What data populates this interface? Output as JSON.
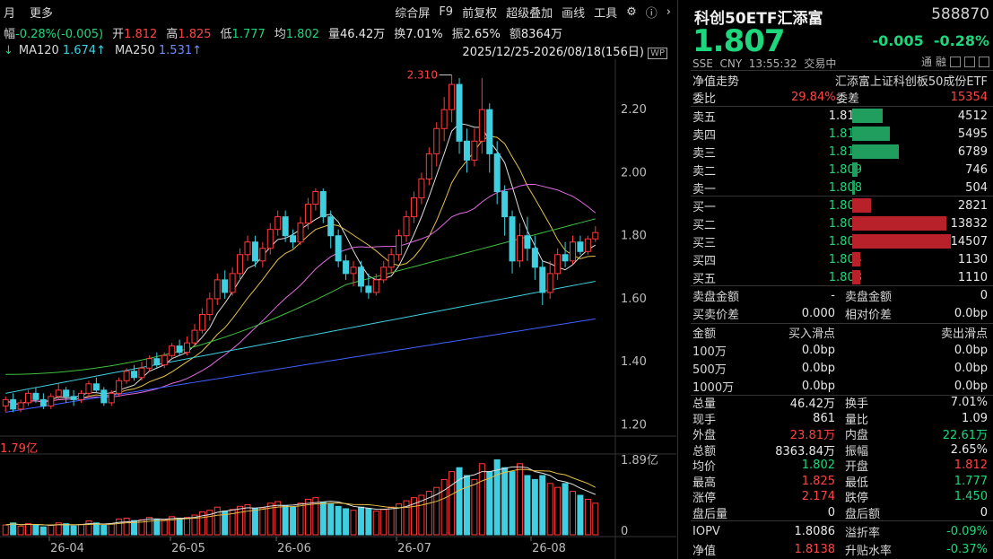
{
  "topbar": {
    "left": [
      "月",
      "更多"
    ],
    "right": [
      "综合屏",
      "F9",
      "前复权",
      "超级叠加",
      "画线",
      "工具"
    ],
    "icons": [
      "gear-icon",
      "help-icon",
      "chevron-right-icon"
    ]
  },
  "infobar": {
    "items": [
      {
        "label": "幅",
        "value": "-0.28%(-0.005)",
        "cls": "dn"
      },
      {
        "label": "开",
        "value": "1.812",
        "cls": "up"
      },
      {
        "label": "高",
        "value": "1.825",
        "cls": "up"
      },
      {
        "label": "低",
        "value": "1.777",
        "cls": "dn"
      },
      {
        "label": "均",
        "value": "1.802",
        "cls": "dn"
      },
      {
        "label": "量",
        "value": "46.42万",
        "cls": "wt"
      },
      {
        "label": "换",
        "value": "7.01%",
        "cls": "wt"
      },
      {
        "label": "振",
        "value": "2.65%",
        "cls": "wt"
      },
      {
        "label": "额",
        "value": "8364万",
        "cls": "wt"
      }
    ]
  },
  "mabar": {
    "ma120_label": "MA120",
    "ma120": "1.674↑",
    "ma250_label": "MA250",
    "ma250": "1.531↑",
    "range": "2025/12/25-2026/08/18(156日)"
  },
  "chart": {
    "high_label": "2.310",
    "price_ticks": [
      "2.20",
      "2.00",
      "1.80",
      "1.60",
      "1.40",
      "1.20"
    ],
    "vol_ticks": [
      "1.89亿",
      "0"
    ],
    "vol_label": "1.79亿",
    "date_ticks": [
      "26-04",
      "26-05",
      "26-06",
      "26-07",
      "26-08"
    ],
    "colors": {
      "up": "#ff3b3b",
      "down": "#3fcfe0",
      "ma5": "#e0e0e0",
      "ma10": "#e6c04a",
      "ma20": "#e06ae0",
      "ma60": "#3fbf3f",
      "ma120": "#3fcfe0",
      "ma250": "#4060ff"
    }
  },
  "quote": {
    "name": "科创50ETF汇添富",
    "code": "588870",
    "price": "1.807",
    "change": "-0.005",
    "change_pct": "-0.28%",
    "market": "SSE",
    "currency": "CNY",
    "time": "13:55:32",
    "status": "交易中",
    "tags": [
      "通",
      "融"
    ],
    "nav_trend": "净值走势",
    "full_name": "汇添富上证科创板50成份ETF"
  },
  "weibi": {
    "label": "委比",
    "value": "29.84%",
    "diff_label": "委差",
    "diff": "15354"
  },
  "asks": [
    {
      "label": "卖五",
      "price": "1.812",
      "vol": "4512",
      "bar": 0.31
    },
    {
      "label": "卖四",
      "price": "1.811",
      "vol": "5495",
      "bar": 0.38
    },
    {
      "label": "卖三",
      "price": "1.810",
      "vol": "6789",
      "bar": 0.47
    },
    {
      "label": "卖二",
      "price": "1.809",
      "vol": "746",
      "bar": 0.05
    },
    {
      "label": "卖一",
      "price": "1.808",
      "vol": "504",
      "bar": 0.03
    }
  ],
  "bids": [
    {
      "label": "买一",
      "price": "1.807",
      "vol": "2821",
      "bar": 0.19
    },
    {
      "label": "买二",
      "price": "1.806",
      "vol": "13832",
      "bar": 0.95
    },
    {
      "label": "买三",
      "price": "1.805",
      "vol": "14507",
      "bar": 1.0
    },
    {
      "label": "买四",
      "price": "1.804",
      "vol": "1130",
      "bar": 0.08
    },
    {
      "label": "买五",
      "price": "1.803",
      "vol": "1110",
      "bar": 0.08
    }
  ],
  "amounts": [
    {
      "l": "卖盘金额",
      "v": "-",
      "l2": "卖盘金额",
      "v2": "0"
    },
    {
      "l": "买卖价差",
      "v": "0.000",
      "l2": "相对价差",
      "v2": "0.0bp"
    }
  ],
  "slip": {
    "header": [
      "金额",
      "买入滑点",
      "卖出滑点"
    ],
    "rows": [
      [
        "100万",
        "0.0bp",
        "0.0bp"
      ],
      [
        "500万",
        "0.0bp",
        "0.0bp"
      ],
      [
        "1000万",
        "0.0bp",
        "0.0bp"
      ]
    ]
  },
  "stats": [
    {
      "l": "总量",
      "v": "46.42万",
      "vc": "wt",
      "l2": "换手",
      "v2": "7.01%",
      "v2c": "wt"
    },
    {
      "l": "现手",
      "v": "861",
      "vc": "wt",
      "l2": "量比",
      "v2": "1.09",
      "v2c": "wt"
    },
    {
      "l": "外盘",
      "v": "23.81万",
      "vc": "up",
      "l2": "内盘",
      "v2": "22.61万",
      "v2c": "dn"
    },
    {
      "l": "总额",
      "v": "8363.84万",
      "vc": "wt",
      "l2": "振幅",
      "v2": "2.65%",
      "v2c": "wt"
    },
    {
      "l": "均价",
      "v": "1.802",
      "vc": "dn",
      "l2": "开盘",
      "v2": "1.812",
      "v2c": "up"
    },
    {
      "l": "最高",
      "v": "1.825",
      "vc": "up",
      "l2": "最低",
      "v2": "1.777",
      "v2c": "dn"
    },
    {
      "l": "涨停",
      "v": "2.174",
      "vc": "up",
      "l2": "跌停",
      "v2": "1.450",
      "v2c": "dn"
    },
    {
      "l": "盘后量",
      "v": "0",
      "vc": "wt",
      "l2": "盘后额",
      "v2": "0",
      "v2c": "wt"
    }
  ],
  "iopv": [
    {
      "l": "IOPV",
      "v": "1.8086",
      "vc": "wt",
      "l2": "溢折率",
      "v2": "-0.09%",
      "v2c": "dn"
    },
    {
      "l": "净值",
      "v": "1.8138",
      "vc": "up",
      "l2": "升贴水率",
      "v2": "-0.37%",
      "v2c": "dn"
    }
  ],
  "chart_data": {
    "type": "candlestick",
    "price_range": [
      1.2,
      2.35
    ],
    "high": 2.31,
    "candles": [
      [
        1.26,
        1.28,
        1.24,
        1.29
      ],
      [
        1.28,
        1.25,
        1.24,
        1.3
      ],
      [
        1.25,
        1.27,
        1.24,
        1.28
      ],
      [
        1.27,
        1.3,
        1.26,
        1.31
      ],
      [
        1.3,
        1.28,
        1.27,
        1.32
      ],
      [
        1.28,
        1.26,
        1.25,
        1.3
      ],
      [
        1.26,
        1.29,
        1.25,
        1.3
      ],
      [
        1.29,
        1.31,
        1.28,
        1.33
      ],
      [
        1.31,
        1.29,
        1.27,
        1.32
      ],
      [
        1.29,
        1.28,
        1.26,
        1.31
      ],
      [
        1.28,
        1.3,
        1.27,
        1.31
      ],
      [
        1.3,
        1.33,
        1.29,
        1.34
      ],
      [
        1.33,
        1.31,
        1.3,
        1.35
      ],
      [
        1.31,
        1.27,
        1.26,
        1.32
      ],
      [
        1.27,
        1.3,
        1.26,
        1.31
      ],
      [
        1.3,
        1.34,
        1.29,
        1.35
      ],
      [
        1.34,
        1.37,
        1.33,
        1.38
      ],
      [
        1.37,
        1.35,
        1.34,
        1.39
      ],
      [
        1.35,
        1.38,
        1.34,
        1.4
      ],
      [
        1.38,
        1.41,
        1.37,
        1.42
      ],
      [
        1.41,
        1.39,
        1.38,
        1.43
      ],
      [
        1.39,
        1.42,
        1.38,
        1.43
      ],
      [
        1.42,
        1.45,
        1.41,
        1.46
      ],
      [
        1.45,
        1.43,
        1.42,
        1.47
      ],
      [
        1.43,
        1.46,
        1.42,
        1.48
      ],
      [
        1.46,
        1.5,
        1.45,
        1.52
      ],
      [
        1.5,
        1.55,
        1.49,
        1.57
      ],
      [
        1.55,
        1.6,
        1.53,
        1.62
      ],
      [
        1.6,
        1.66,
        1.58,
        1.68
      ],
      [
        1.66,
        1.62,
        1.6,
        1.69
      ],
      [
        1.62,
        1.68,
        1.61,
        1.7
      ],
      [
        1.68,
        1.74,
        1.66,
        1.76
      ],
      [
        1.74,
        1.78,
        1.72,
        1.8
      ],
      [
        1.78,
        1.72,
        1.7,
        1.8
      ],
      [
        1.72,
        1.76,
        1.7,
        1.78
      ],
      [
        1.76,
        1.82,
        1.74,
        1.84
      ],
      [
        1.82,
        1.86,
        1.8,
        1.88
      ],
      [
        1.86,
        1.8,
        1.78,
        1.88
      ],
      [
        1.8,
        1.78,
        1.76,
        1.82
      ],
      [
        1.78,
        1.84,
        1.77,
        1.86
      ],
      [
        1.84,
        1.9,
        1.82,
        1.92
      ],
      [
        1.9,
        1.94,
        1.88,
        1.95
      ],
      [
        1.94,
        1.86,
        1.84,
        1.95
      ],
      [
        1.86,
        1.8,
        1.76,
        1.88
      ],
      [
        1.8,
        1.72,
        1.7,
        1.82
      ],
      [
        1.72,
        1.68,
        1.66,
        1.74
      ],
      [
        1.68,
        1.7,
        1.64,
        1.72
      ],
      [
        1.7,
        1.64,
        1.62,
        1.72
      ],
      [
        1.64,
        1.62,
        1.6,
        1.68
      ],
      [
        1.62,
        1.66,
        1.61,
        1.68
      ],
      [
        1.66,
        1.7,
        1.65,
        1.72
      ],
      [
        1.7,
        1.74,
        1.68,
        1.76
      ],
      [
        1.74,
        1.8,
        1.72,
        1.82
      ],
      [
        1.8,
        1.86,
        1.78,
        1.88
      ],
      [
        1.86,
        1.92,
        1.84,
        1.94
      ],
      [
        1.92,
        1.98,
        1.9,
        2.0
      ],
      [
        1.98,
        2.06,
        1.96,
        2.08
      ],
      [
        2.06,
        2.14,
        2.02,
        2.16
      ],
      [
        2.14,
        2.2,
        2.1,
        2.24
      ],
      [
        2.2,
        2.28,
        2.16,
        2.31
      ],
      [
        2.28,
        2.1,
        2.06,
        2.3
      ],
      [
        2.1,
        2.04,
        2.0,
        2.14
      ],
      [
        2.04,
        2.1,
        2.02,
        2.14
      ],
      [
        2.1,
        2.2,
        2.06,
        2.3
      ],
      [
        2.2,
        2.06,
        2.0,
        2.22
      ],
      [
        2.06,
        1.94,
        1.9,
        2.1
      ],
      [
        1.94,
        1.86,
        1.8,
        1.96
      ],
      [
        1.86,
        1.72,
        1.68,
        1.88
      ],
      [
        1.72,
        1.8,
        1.7,
        1.84
      ],
      [
        1.8,
        1.76,
        1.72,
        1.86
      ],
      [
        1.76,
        1.7,
        1.66,
        1.8
      ],
      [
        1.7,
        1.62,
        1.58,
        1.72
      ],
      [
        1.62,
        1.68,
        1.6,
        1.72
      ],
      [
        1.68,
        1.74,
        1.66,
        1.76
      ],
      [
        1.74,
        1.72,
        1.7,
        1.78
      ],
      [
        1.72,
        1.78,
        1.71,
        1.8
      ],
      [
        1.78,
        1.75,
        1.74,
        1.8
      ],
      [
        1.75,
        1.79,
        1.74,
        1.8
      ],
      [
        1.79,
        1.81,
        1.78,
        1.83
      ]
    ],
    "volumes": [
      0.25,
      0.3,
      0.22,
      0.28,
      0.26,
      0.2,
      0.24,
      0.3,
      0.28,
      0.22,
      0.26,
      0.35,
      0.3,
      0.24,
      0.28,
      0.4,
      0.42,
      0.36,
      0.38,
      0.44,
      0.4,
      0.38,
      0.46,
      0.42,
      0.44,
      0.5,
      0.58,
      0.62,
      0.7,
      0.6,
      0.64,
      0.72,
      0.76,
      0.66,
      0.68,
      0.8,
      0.84,
      0.74,
      0.7,
      0.8,
      0.9,
      0.94,
      0.82,
      0.78,
      0.72,
      0.66,
      0.62,
      0.7,
      0.66,
      0.6,
      0.64,
      0.7,
      0.78,
      0.86,
      0.94,
      1.0,
      1.1,
      1.2,
      1.4,
      1.6,
      1.7,
      1.5,
      1.4,
      1.8,
      1.6,
      1.9,
      1.7,
      1.6,
      1.8,
      1.5,
      1.4,
      1.5,
      1.3,
      1.2,
      1.3,
      1.1,
      1.0,
      0.9,
      0.8
    ]
  }
}
